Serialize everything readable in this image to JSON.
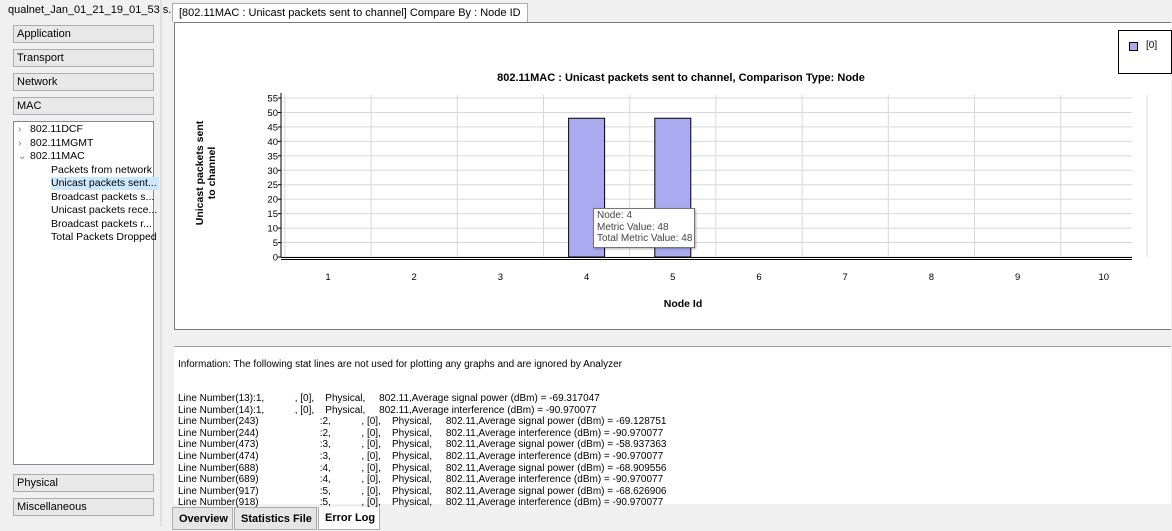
{
  "window": {
    "file_title": "qualnet_Jan_01_21_19_01_53.s..."
  },
  "sidebar": {
    "categories_top": [
      "Application",
      "Transport",
      "Network",
      "MAC"
    ],
    "categories_bottom": [
      "Physical",
      "Miscellaneous"
    ],
    "tree": [
      {
        "label": "802.11DCF",
        "expander": "›",
        "level": 0
      },
      {
        "label": "802.11MGMT",
        "expander": "›",
        "level": 0
      },
      {
        "label": "802.11MAC",
        "expander": "⌄",
        "level": 0
      },
      {
        "label": "Packets from network",
        "level": 1
      },
      {
        "label": "Unicast packets sent...",
        "level": 1,
        "selected": true
      },
      {
        "label": "Broadcast packets s...",
        "level": 1
      },
      {
        "label": "Unicast packets rece...",
        "level": 1
      },
      {
        "label": "Broadcast packets r...",
        "level": 1
      },
      {
        "label": "Total Packets Dropped",
        "level": 1
      }
    ]
  },
  "chart_tab": {
    "label": "[802.11MAC :  Unicast packets sent to channel] Compare By : Node ID"
  },
  "chart_data": {
    "type": "bar",
    "title": "802.11MAC :  Unicast packets sent to channel, Comparison Type: Node",
    "xlabel": "Node Id",
    "ylabel": "Unicast packets sent to channel",
    "ylabel_lines": [
      "Unicast packets sent",
      "to channel"
    ],
    "categories": [
      "1",
      "2",
      "3",
      "4",
      "5",
      "6",
      "7",
      "8",
      "9",
      "10"
    ],
    "series": [
      {
        "name": "[0]",
        "color": "#aaaaf0",
        "values": [
          0,
          0,
          0,
          48,
          48,
          0,
          0,
          0,
          0,
          0
        ]
      }
    ],
    "ylim": [
      0,
      55
    ],
    "yticks": [
      0,
      5,
      10,
      15,
      20,
      25,
      30,
      35,
      40,
      45,
      50,
      55
    ],
    "grid": true,
    "legend": "top-right"
  },
  "tooltip": {
    "line1": "Node: 4",
    "line2": "Metric Value: 48",
    "line3": "Total Metric Value: 48"
  },
  "info": {
    "header": "Information: The following stat lines are not used for plotting any graphs and are ignored by Analyzer",
    "lines": [
      "Line Number(13):1,           , [0],    Physical,     802.11,Average signal power (dBm) = -69.317047",
      "Line Number(14):1,           , [0],    Physical,     802.11,Average interference (dBm) = -90.970077",
      "Line Number(243)                      :2,           , [0],    Physical,     802.11,Average signal power (dBm) = -69.128751",
      "Line Number(244)                      :2,           , [0],    Physical,     802.11,Average interference (dBm) = -90.970077",
      "Line Number(473)                      :3,           , [0],    Physical,     802.11,Average signal power (dBm) = -58.937363",
      "Line Number(474)                      :3,           , [0],    Physical,     802.11,Average interference (dBm) = -90.970077",
      "Line Number(688)                      :4,           , [0],    Physical,     802.11,Average signal power (dBm) = -68.909556",
      "Line Number(689)                      :4,           , [0],    Physical,     802.11,Average interference (dBm) = -90.970077",
      "Line Number(917)                      :5,           , [0],    Physical,     802.11,Average signal power (dBm) = -68.626906",
      "Line Number(918)                      :5,           , [0],    Physical,     802.11,Average interference (dBm) = -90.970077"
    ]
  },
  "bottom_tabs": [
    {
      "label": "Overview",
      "active": false
    },
    {
      "label": "Statistics File",
      "active": false
    },
    {
      "label": "Error Log",
      "active": true
    }
  ]
}
